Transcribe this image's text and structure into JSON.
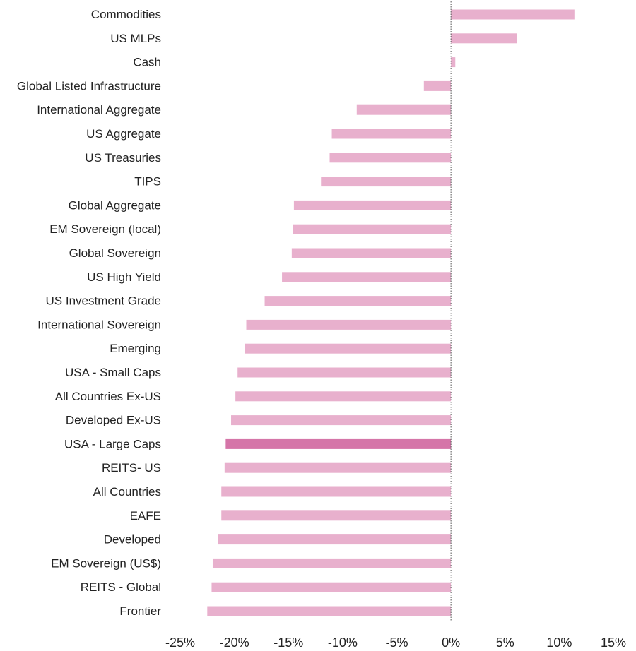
{
  "chart_data": {
    "type": "bar",
    "orientation": "horizontal",
    "categories": [
      "Commodities",
      "US MLPs",
      "Cash",
      "Global Listed Infrastructure",
      "International Aggregate",
      "US Aggregate",
      "US Treasuries",
      "TIPS",
      "Global Aggregate",
      "EM Sovereign (local)",
      "Global Sovereign",
      "US High Yield",
      "US Investment Grade",
      "International Sovereign",
      "Emerging",
      "USA - Small Caps",
      "All Countries Ex-US",
      "Developed Ex-US",
      "USA - Large Caps",
      "REITS- US",
      "All Countries",
      "EAFE",
      "Developed",
      "EM Sovereign (US$)",
      "REITS - Global",
      "Frontier"
    ],
    "values": [
      11.4,
      6.1,
      0.4,
      -2.5,
      -8.7,
      -11.0,
      -11.2,
      -12.0,
      -14.5,
      -14.6,
      -14.7,
      -15.6,
      -17.2,
      -18.9,
      -19.0,
      -19.7,
      -19.9,
      -20.3,
      -20.8,
      -20.9,
      -21.2,
      -21.2,
      -21.5,
      -22.0,
      -22.1,
      -22.5
    ],
    "highlight": "USA - Large Caps",
    "xlim": [
      -25,
      15
    ],
    "ticks": [
      -25,
      -20,
      -15,
      -10,
      -5,
      0,
      5,
      10,
      15
    ],
    "tick_labels": [
      "-25%",
      "-20%",
      "-15%",
      "-10%",
      "-5%",
      "0%",
      "5%",
      "10%",
      "15%"
    ],
    "title": "",
    "xlabel": "",
    "ylabel": "",
    "grid": false,
    "colors": {
      "bar": "#e8b0cd",
      "highlight": "#d575a8",
      "zero_line": "#555555"
    }
  }
}
